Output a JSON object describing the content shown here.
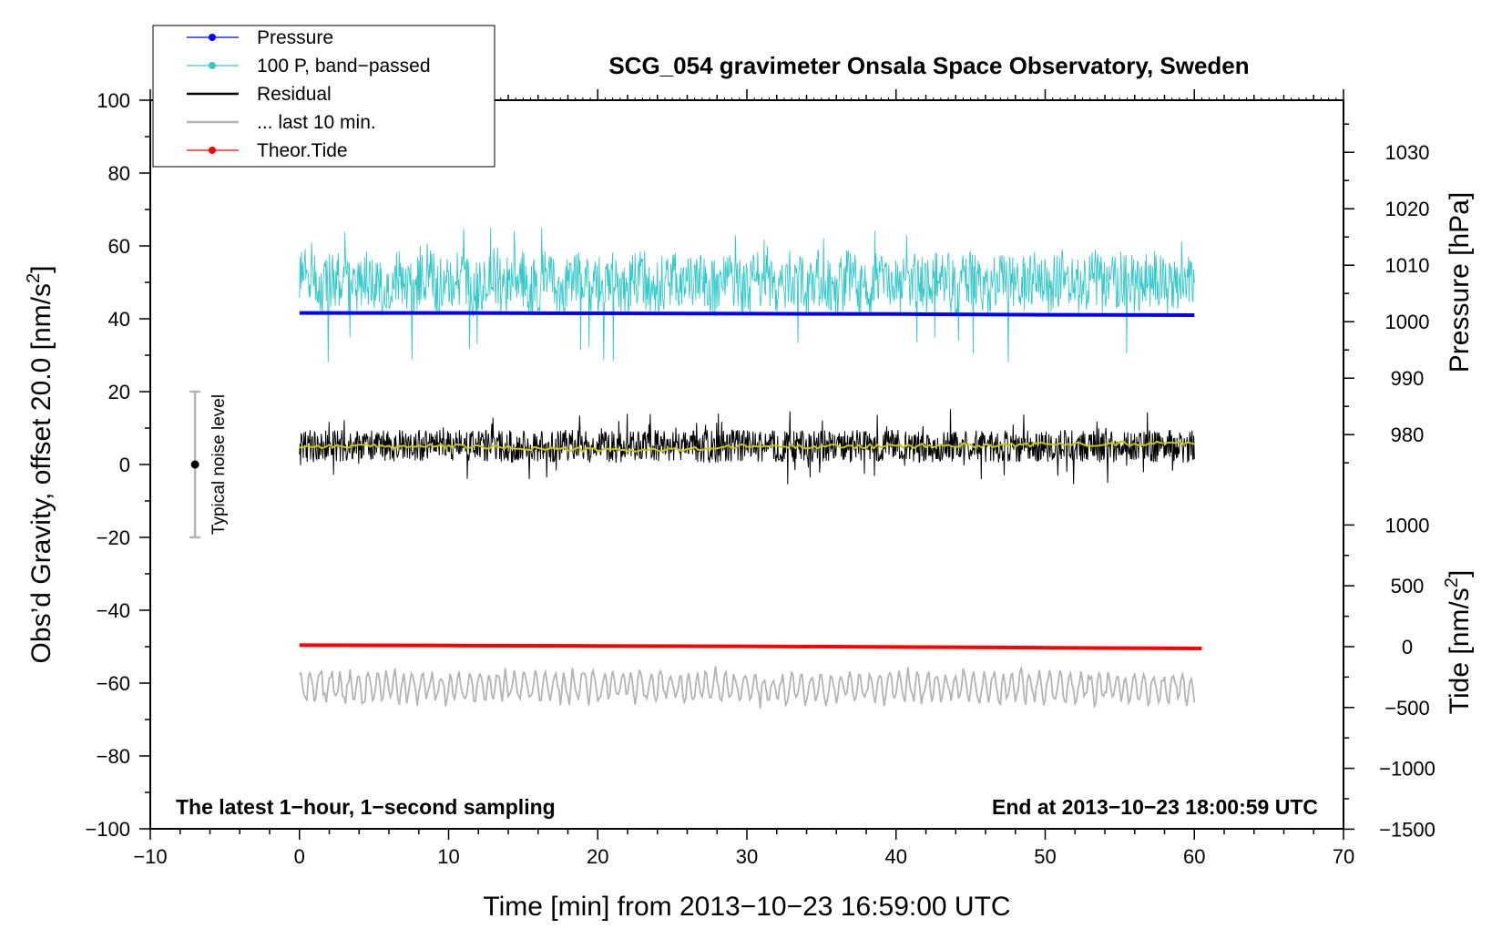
{
  "chart_data": {
    "type": "line",
    "title": "SCG_054 gravimeter Onsala Space Observatory, Sweden",
    "xlabel": "Time [min] from 2013−10−23 16:59:00 UTC",
    "ylabel_left_prefix": "Obs’d Gravity, offset 20.0 [nm/s",
    "ylabel_left_suffix": "]",
    "ylabel_right_top": "Pressure [hPa]",
    "ylabel_right_bottom_prefix": "Tide [nm/s",
    "ylabel_right_bottom_suffix": "]",
    "superscript": "2",
    "xlim": [
      -10,
      70
    ],
    "ylim": [
      -100,
      100
    ],
    "x_ticks": [
      -10,
      0,
      10,
      20,
      30,
      40,
      50,
      60,
      70
    ],
    "x_tick_labels": [
      "−10",
      "0",
      "10",
      "20",
      "30",
      "40",
      "50",
      "60",
      "70"
    ],
    "y_ticks": [
      -100,
      -80,
      -60,
      -40,
      -20,
      0,
      20,
      40,
      60,
      80,
      100
    ],
    "y_tick_labels": [
      "−100",
      "−80",
      "−60",
      "−40",
      "−20",
      "0",
      "20",
      "40",
      "60",
      "80",
      "100"
    ],
    "pressure_axis": {
      "ticks": [
        980,
        990,
        1000,
        1010,
        1020,
        1030
      ],
      "tick_labels": [
        "980",
        "990",
        "1000",
        "1010",
        "1020",
        "1030"
      ],
      "gravity_equivalent": {
        "at_1000hPa": 39.2,
        "per_10hPa": 15.5
      }
    },
    "tide_axis": {
      "ticks": [
        -1500,
        -1000,
        -500,
        0,
        500,
        1000
      ],
      "tick_labels": [
        "−1500",
        "−1000",
        "−500",
        "0",
        "500",
        "1000"
      ],
      "gravity_equivalent": {
        "at_0": -50,
        "per_500": 16.7
      }
    },
    "annotation_left": "The latest 1−hour, 1−second sampling",
    "annotation_right": "End at 2013−10−23 18:00:59 UTC",
    "noise_bar": {
      "x": -7,
      "center": 0,
      "low": -20,
      "high": 20,
      "label": "Typical noise level"
    },
    "legend": [
      {
        "label": "Pressure",
        "color": "#0000ff",
        "marker": true
      },
      {
        "label": "100 P, band−passed",
        "color": "#36c9c9",
        "marker": true
      },
      {
        "label": "Residual",
        "color": "#000000",
        "marker": false
      },
      {
        "label": "... last 10 min.",
        "color": "#b4b4b4",
        "marker": false
      },
      {
        "label": "Theor.Tide",
        "color": "#ff0000",
        "marker": true
      }
    ],
    "series": [
      {
        "name": "Pressure",
        "color": "#0000ff",
        "x": [
          0,
          10,
          20,
          30,
          40,
          50,
          60
        ],
        "y": [
          41.6,
          41.6,
          41.5,
          41.4,
          41.3,
          41.1,
          41.0
        ]
      },
      {
        "name": "100 P, band-passed",
        "color": "#36c9c9",
        "x_range": [
          0,
          60
        ],
        "mean": 50,
        "amplitude": 8,
        "min": 27,
        "max": 65
      },
      {
        "name": "Residual",
        "color": "#000000",
        "x_range": [
          0,
          60
        ],
        "mean": 5,
        "amplitude": 4.5,
        "min": -6,
        "max": 16
      },
      {
        "name": "Residual smoothed",
        "color": "#c8c800",
        "x": [
          0,
          10,
          20,
          25,
          30,
          40,
          50,
          60
        ],
        "y": [
          5,
          5,
          4,
          4,
          5,
          5,
          5.5,
          6
        ]
      },
      {
        "name": "... last 10 min.",
        "color": "#b4b4b4",
        "x_range": [
          0,
          60
        ],
        "mean": -61,
        "amplitude": 4,
        "min": -71,
        "max": -53
      },
      {
        "name": "Theor.Tide",
        "color": "#ff0000",
        "x": [
          0,
          10,
          20,
          30,
          40,
          50,
          60.5
        ],
        "y": [
          -49.6,
          -49.7,
          -49.8,
          -49.9,
          -50.1,
          -50.3,
          -50.5
        ]
      }
    ],
    "colors": {
      "pressure": "#0000ff",
      "bandpassed": "#36c9c9",
      "residual": "#000000",
      "smoothed": "#c8c800",
      "last10": "#b4b4b4",
      "tide": "#ff0000",
      "noise_bar": "#b4b4b4"
    }
  }
}
